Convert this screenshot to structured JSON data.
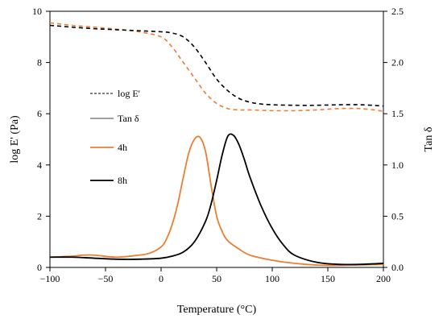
{
  "chart_data": {
    "type": "line",
    "xlabel": "Temperature (°C)",
    "ylabel_left": "log E' (Pa)",
    "ylabel_right": "Tan δ",
    "xlim": [
      -100,
      200
    ],
    "ylim_left": [
      0,
      10
    ],
    "ylim_right": [
      0,
      2.5
    ],
    "x_ticks": [
      -100,
      -50,
      0,
      50,
      100,
      150,
      200
    ],
    "y_left_ticks": [
      0,
      2,
      4,
      6,
      8,
      10
    ],
    "y_right_ticks": [
      0,
      0.5,
      1.0,
      1.5,
      2.0,
      2.5
    ],
    "y_right_tick_labels": [
      "0.0",
      "0.5",
      "1.0",
      "1.5",
      "2.0",
      "2.5"
    ],
    "legend": [
      {
        "label": "log E'",
        "style": "dashed",
        "color": "#000000"
      },
      {
        "label": "Tan δ",
        "style": "solid-thin",
        "color": "#000000"
      },
      {
        "label": "4h",
        "style": "solid",
        "color": "#ED7D31"
      },
      {
        "label": "8h",
        "style": "solid",
        "color": "#000000"
      }
    ],
    "series": [
      {
        "name": "log E' 4h",
        "axis": "left",
        "style": "dashed",
        "color": "#ED7D31",
        "x": [
          -100,
          -80,
          -60,
          -40,
          -20,
          0,
          10,
          20,
          30,
          40,
          50,
          60,
          70,
          80,
          100,
          120,
          140,
          160,
          180,
          200
        ],
        "y": [
          9.55,
          9.45,
          9.38,
          9.3,
          9.2,
          9.0,
          8.6,
          8.0,
          7.4,
          6.8,
          6.4,
          6.2,
          6.15,
          6.15,
          6.12,
          6.12,
          6.15,
          6.2,
          6.2,
          6.1
        ]
      },
      {
        "name": "log E' 8h",
        "axis": "left",
        "style": "dashed",
        "color": "#000000",
        "x": [
          -100,
          -80,
          -60,
          -40,
          -20,
          0,
          10,
          20,
          30,
          40,
          50,
          60,
          70,
          80,
          90,
          100,
          120,
          140,
          160,
          180,
          200
        ],
        "y": [
          9.45,
          9.38,
          9.32,
          9.28,
          9.24,
          9.2,
          9.15,
          9.0,
          8.6,
          8.0,
          7.35,
          6.9,
          6.6,
          6.45,
          6.38,
          6.35,
          6.33,
          6.33,
          6.35,
          6.35,
          6.3
        ]
      },
      {
        "name": "Tan δ 4h",
        "axis": "right",
        "style": "solid",
        "color": "#ED7D31",
        "x": [
          -100,
          -80,
          -70,
          -60,
          -40,
          -20,
          -10,
          0,
          5,
          10,
          15,
          20,
          25,
          30,
          35,
          40,
          45,
          50,
          55,
          60,
          70,
          80,
          100,
          120,
          150,
          200
        ],
        "y": [
          0.1,
          0.11,
          0.12,
          0.12,
          0.1,
          0.12,
          0.14,
          0.2,
          0.28,
          0.42,
          0.62,
          0.88,
          1.12,
          1.25,
          1.27,
          1.13,
          0.8,
          0.5,
          0.35,
          0.26,
          0.18,
          0.12,
          0.07,
          0.04,
          0.02,
          0.03
        ]
      },
      {
        "name": "Tan δ 8h",
        "axis": "right",
        "style": "solid",
        "color": "#000000",
        "x": [
          -100,
          -80,
          -60,
          -40,
          -20,
          0,
          10,
          20,
          30,
          40,
          45,
          50,
          55,
          60,
          65,
          70,
          75,
          80,
          90,
          100,
          110,
          120,
          140,
          160,
          180,
          200
        ],
        "y": [
          0.1,
          0.1,
          0.09,
          0.08,
          0.08,
          0.09,
          0.11,
          0.15,
          0.25,
          0.45,
          0.62,
          0.85,
          1.1,
          1.28,
          1.29,
          1.2,
          1.05,
          0.88,
          0.6,
          0.38,
          0.22,
          0.12,
          0.05,
          0.03,
          0.03,
          0.04
        ]
      }
    ]
  }
}
